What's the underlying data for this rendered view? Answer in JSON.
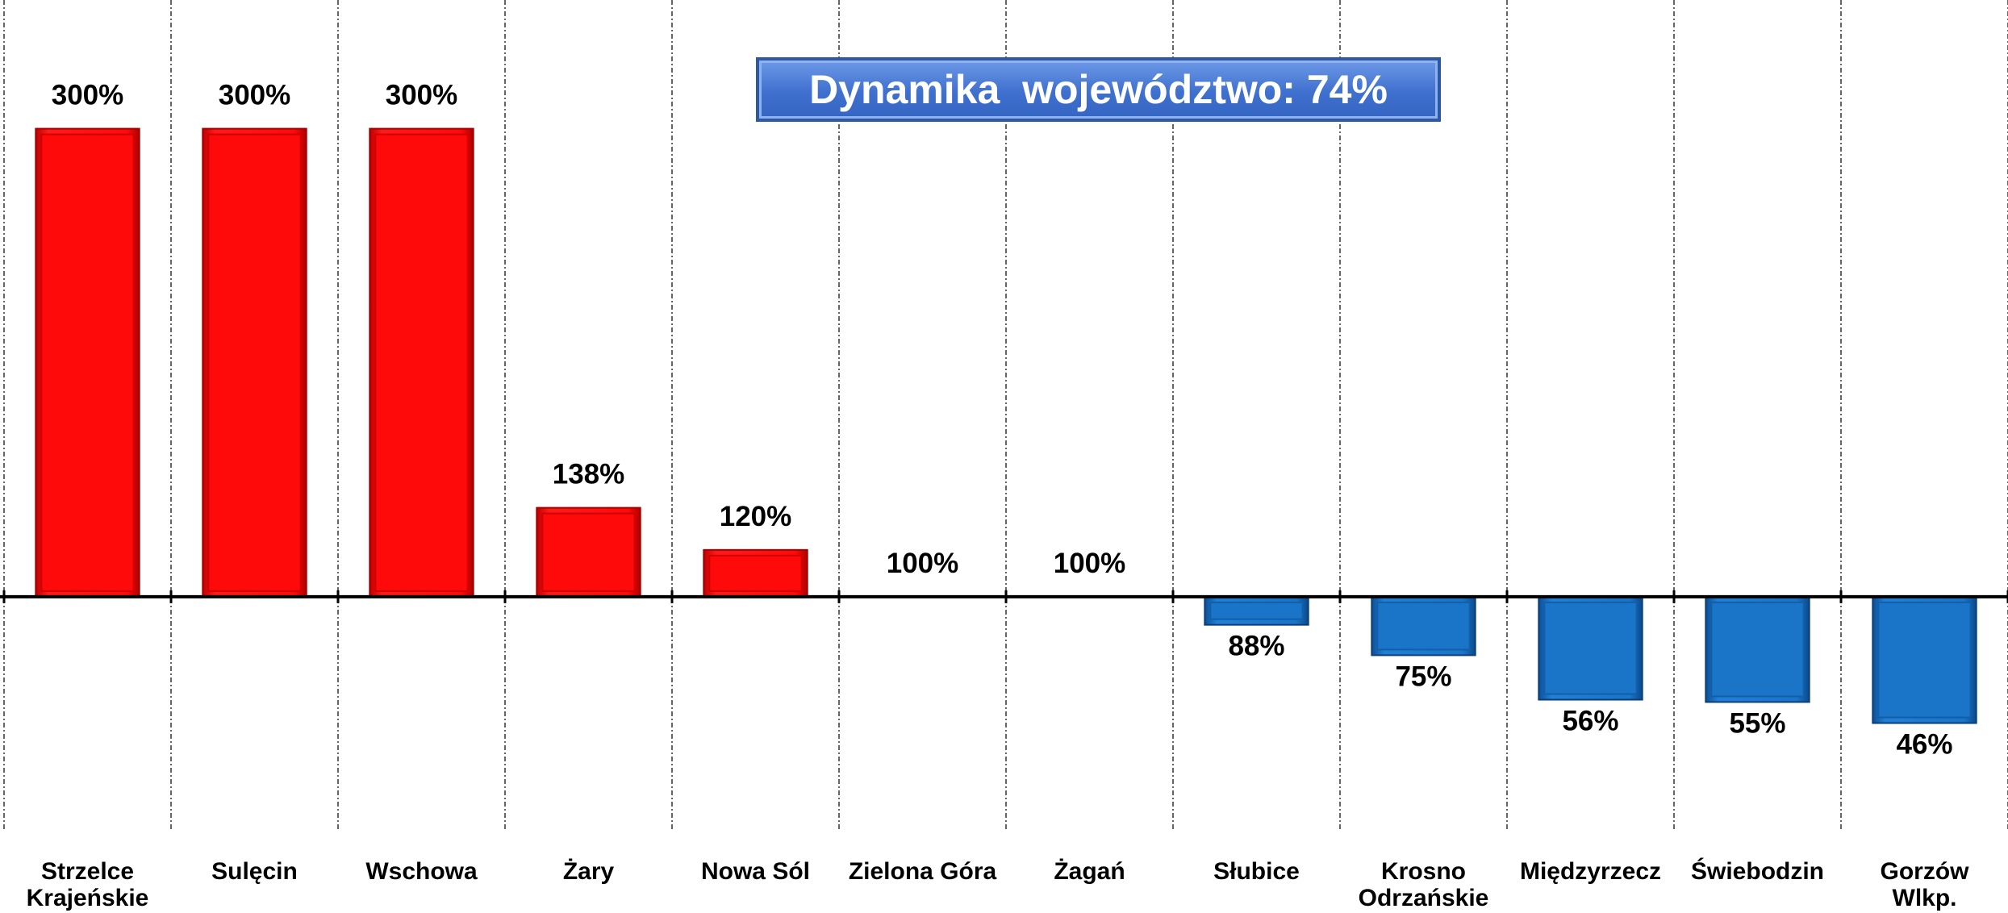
{
  "chart_data": {
    "type": "bar",
    "annotation": "Dynamika  województwo: 74%",
    "categories": [
      "Strzelce\nKrajeńskie",
      "Sulęcin",
      "Wschowa",
      "Żary",
      "Nowa Sól",
      "Zielona Góra",
      "Żagań",
      "Słubice",
      "Krosno\nOdrzańskie",
      "Międzyrzecz",
      "Świebodzin",
      "Gorzów\nWlkp."
    ],
    "values": [
      300,
      300,
      300,
      138,
      120,
      100,
      100,
      88,
      75,
      56,
      55,
      46
    ],
    "value_labels": [
      "300%",
      "300%",
      "300%",
      "138%",
      "120%",
      "100%",
      "100%",
      "88%",
      "75%",
      "56%",
      "55%",
      "46%"
    ],
    "baseline": 100,
    "color_above": "#ff0a0a",
    "color_below": "#1a74c8",
    "ylim": [
      0,
      355
    ],
    "grid": true
  }
}
